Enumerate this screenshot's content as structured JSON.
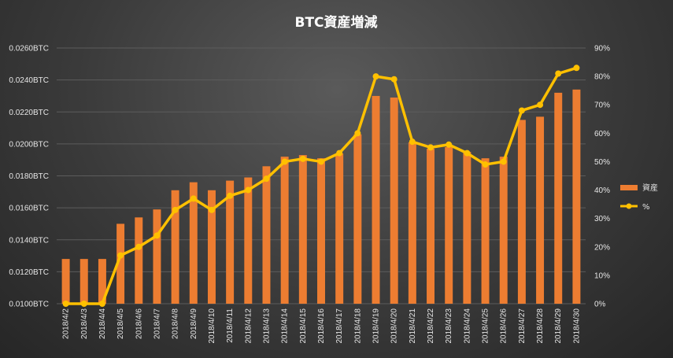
{
  "chart_data": {
    "type": "bar",
    "title": "BTC資産増減",
    "categories": [
      "2018/4/2",
      "2018/4/3",
      "2018/4/4",
      "2018/4/5",
      "2018/4/6",
      "2018/4/7",
      "2018/4/8",
      "2018/4/9",
      "2018/4/10",
      "2018/4/11",
      "2018/4/12",
      "2018/4/13",
      "2018/4/14",
      "2018/4/15",
      "2018/4/16",
      "2018/4/17",
      "2018/4/18",
      "2018/4/19",
      "2018/4/20",
      "2018/4/21",
      "2018/4/22",
      "2018/4/23",
      "2018/4/24",
      "2018/4/25",
      "2018/4/26",
      "2018/4/27",
      "2018/4/28",
      "2018/4/29",
      "2018/4/30"
    ],
    "series": [
      {
        "name": "資産",
        "type": "bar",
        "axis": "left",
        "color": "#ed7d31",
        "values": [
          0.0128,
          0.0128,
          0.0128,
          0.015,
          0.0154,
          0.0159,
          0.0171,
          0.0176,
          0.0171,
          0.0177,
          0.0179,
          0.0186,
          0.0192,
          0.0193,
          0.0191,
          0.0194,
          0.0206,
          0.023,
          0.0229,
          0.0201,
          0.0197,
          0.0198,
          0.0195,
          0.0191,
          0.0192,
          0.0215,
          0.0217,
          0.0232,
          0.0234
        ]
      },
      {
        "name": "%",
        "type": "line",
        "axis": "right",
        "color": "#ffc000",
        "values": [
          0,
          0,
          0,
          17,
          20,
          24,
          33,
          37,
          33,
          38,
          40,
          44,
          50,
          51,
          50,
          53,
          60,
          80,
          79,
          57,
          55,
          56,
          53,
          49,
          50,
          68,
          70,
          81,
          83
        ]
      }
    ],
    "y_left": {
      "min": 0.01,
      "max": 0.026,
      "step": 0.002,
      "tick_labels": [
        "0.0100BTC",
        "0.0120BTC",
        "0.0140BTC",
        "0.0160BTC",
        "0.0180BTC",
        "0.0200BTC",
        "0.0220BTC",
        "0.0240BTC",
        "0.0260BTC"
      ]
    },
    "y_right": {
      "min": 0,
      "max": 90,
      "step": 10,
      "tick_labels": [
        "0%",
        "10%",
        "20%",
        "30%",
        "40%",
        "50%",
        "60%",
        "70%",
        "80%",
        "90%"
      ]
    },
    "legend": {
      "position": "right",
      "items": [
        "資産",
        "%"
      ]
    },
    "grid": true
  },
  "colors": {
    "bar": "#ed7d31",
    "line": "#ffc000",
    "grid": "#5c5c5c",
    "text": "#e6e6e6"
  }
}
